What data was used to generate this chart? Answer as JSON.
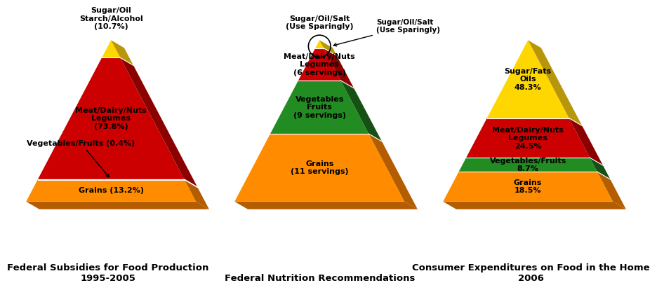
{
  "bg_color": "#FFFFFF",
  "label_fontsize": 8.0,
  "title_fontsize": 9.5,
  "pyramids": [
    {
      "title": "Federal Subsidies for Food Production\n1995-2005",
      "layers": [
        {
          "label": "Grains (13.2%)",
          "pct": 13.2,
          "color": "#FF8C00",
          "side_color": "#B35C00",
          "label_inside": true,
          "arrow": false
        },
        {
          "label": "Vegetables/Fruits (0.4%)",
          "pct": 0.4,
          "color": "#228B22",
          "side_color": "#155015",
          "label_inside": false,
          "arrow": true
        },
        {
          "label": "Meat/Dairy/Nuts\nLegumes\n(73.8%)",
          "pct": 73.8,
          "color": "#CC0000",
          "side_color": "#8B0000",
          "label_inside": true,
          "arrow": false
        },
        {
          "label": "Sugar/Oil\nStarch/Alcohol\n(10.7%)",
          "pct": 10.7,
          "color": "#FFD700",
          "side_color": "#B8960C",
          "label_inside": false,
          "arrow": false
        }
      ],
      "circle_annotation": false
    },
    {
      "title": "Federal Nutrition Recommendations",
      "layers": [
        {
          "label": "Grains\n(11 servings)",
          "pct": 42,
          "color": "#FF8C00",
          "side_color": "#B35C00",
          "label_inside": true,
          "arrow": false
        },
        {
          "label": "Vegetables\nFruits\n(9 servings)",
          "pct": 33,
          "color": "#228B22",
          "side_color": "#155015",
          "label_inside": true,
          "arrow": false
        },
        {
          "label": "Meat/Dairy/Nuts\nLegumes\n(6 servings)",
          "pct": 20,
          "color": "#CC0000",
          "side_color": "#8B0000",
          "label_inside": true,
          "arrow": false
        },
        {
          "label": "Sugar/Oil/Salt\n(Use Sparingly)",
          "pct": 5,
          "color": "#FFD700",
          "side_color": "#B8960C",
          "label_inside": false,
          "arrow": false
        }
      ],
      "circle_annotation": true
    },
    {
      "title": "Consumer Expenditures on Food in the Home\n2006",
      "layers": [
        {
          "label": "Grains\n18.5%",
          "pct": 18.5,
          "color": "#FF8C00",
          "side_color": "#B35C00",
          "label_inside": true,
          "arrow": false
        },
        {
          "label": "Vegetables/Fruits\n8.7%",
          "pct": 8.7,
          "color": "#228B22",
          "side_color": "#155015",
          "label_inside": true,
          "arrow": false
        },
        {
          "label": "Meat/Dairy/Nuts\nLegumes\n24.5%",
          "pct": 24.5,
          "color": "#CC0000",
          "side_color": "#8B0000",
          "label_inside": true,
          "arrow": false
        },
        {
          "label": "Sugar/Fats\nOils\n48.3%",
          "pct": 48.3,
          "color": "#FFD700",
          "side_color": "#B8960C",
          "label_inside": true,
          "arrow": false
        }
      ],
      "circle_annotation": false
    }
  ]
}
